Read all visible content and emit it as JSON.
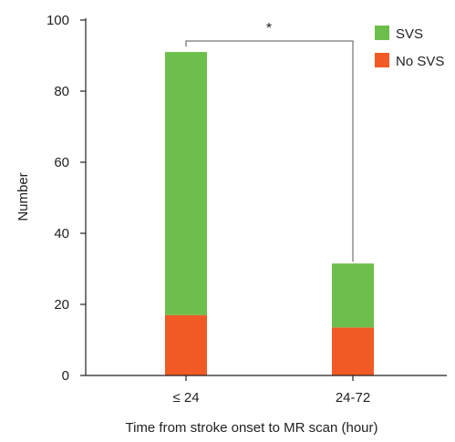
{
  "chart_data": {
    "type": "bar",
    "stacked": true,
    "categories": [
      "≤ 24",
      "24-72"
    ],
    "series": [
      {
        "name": "No SVS",
        "values": [
          17,
          13.5
        ],
        "color": "#f15a24"
      },
      {
        "name": "SVS",
        "values": [
          74,
          18
        ],
        "color": "#6cbf4a"
      }
    ],
    "totals": [
      91,
      31.5
    ],
    "xlabel": "Time from stroke onset to MR scan (hour)",
    "ylabel": "Number",
    "ylim": [
      0,
      100
    ],
    "yticks": [
      "0",
      "20",
      "40",
      "60",
      "80",
      "100"
    ],
    "grid": false,
    "legend_position": "top-right",
    "significance": {
      "between": [
        "≤ 24",
        "24-72"
      ],
      "marker": "*"
    }
  }
}
